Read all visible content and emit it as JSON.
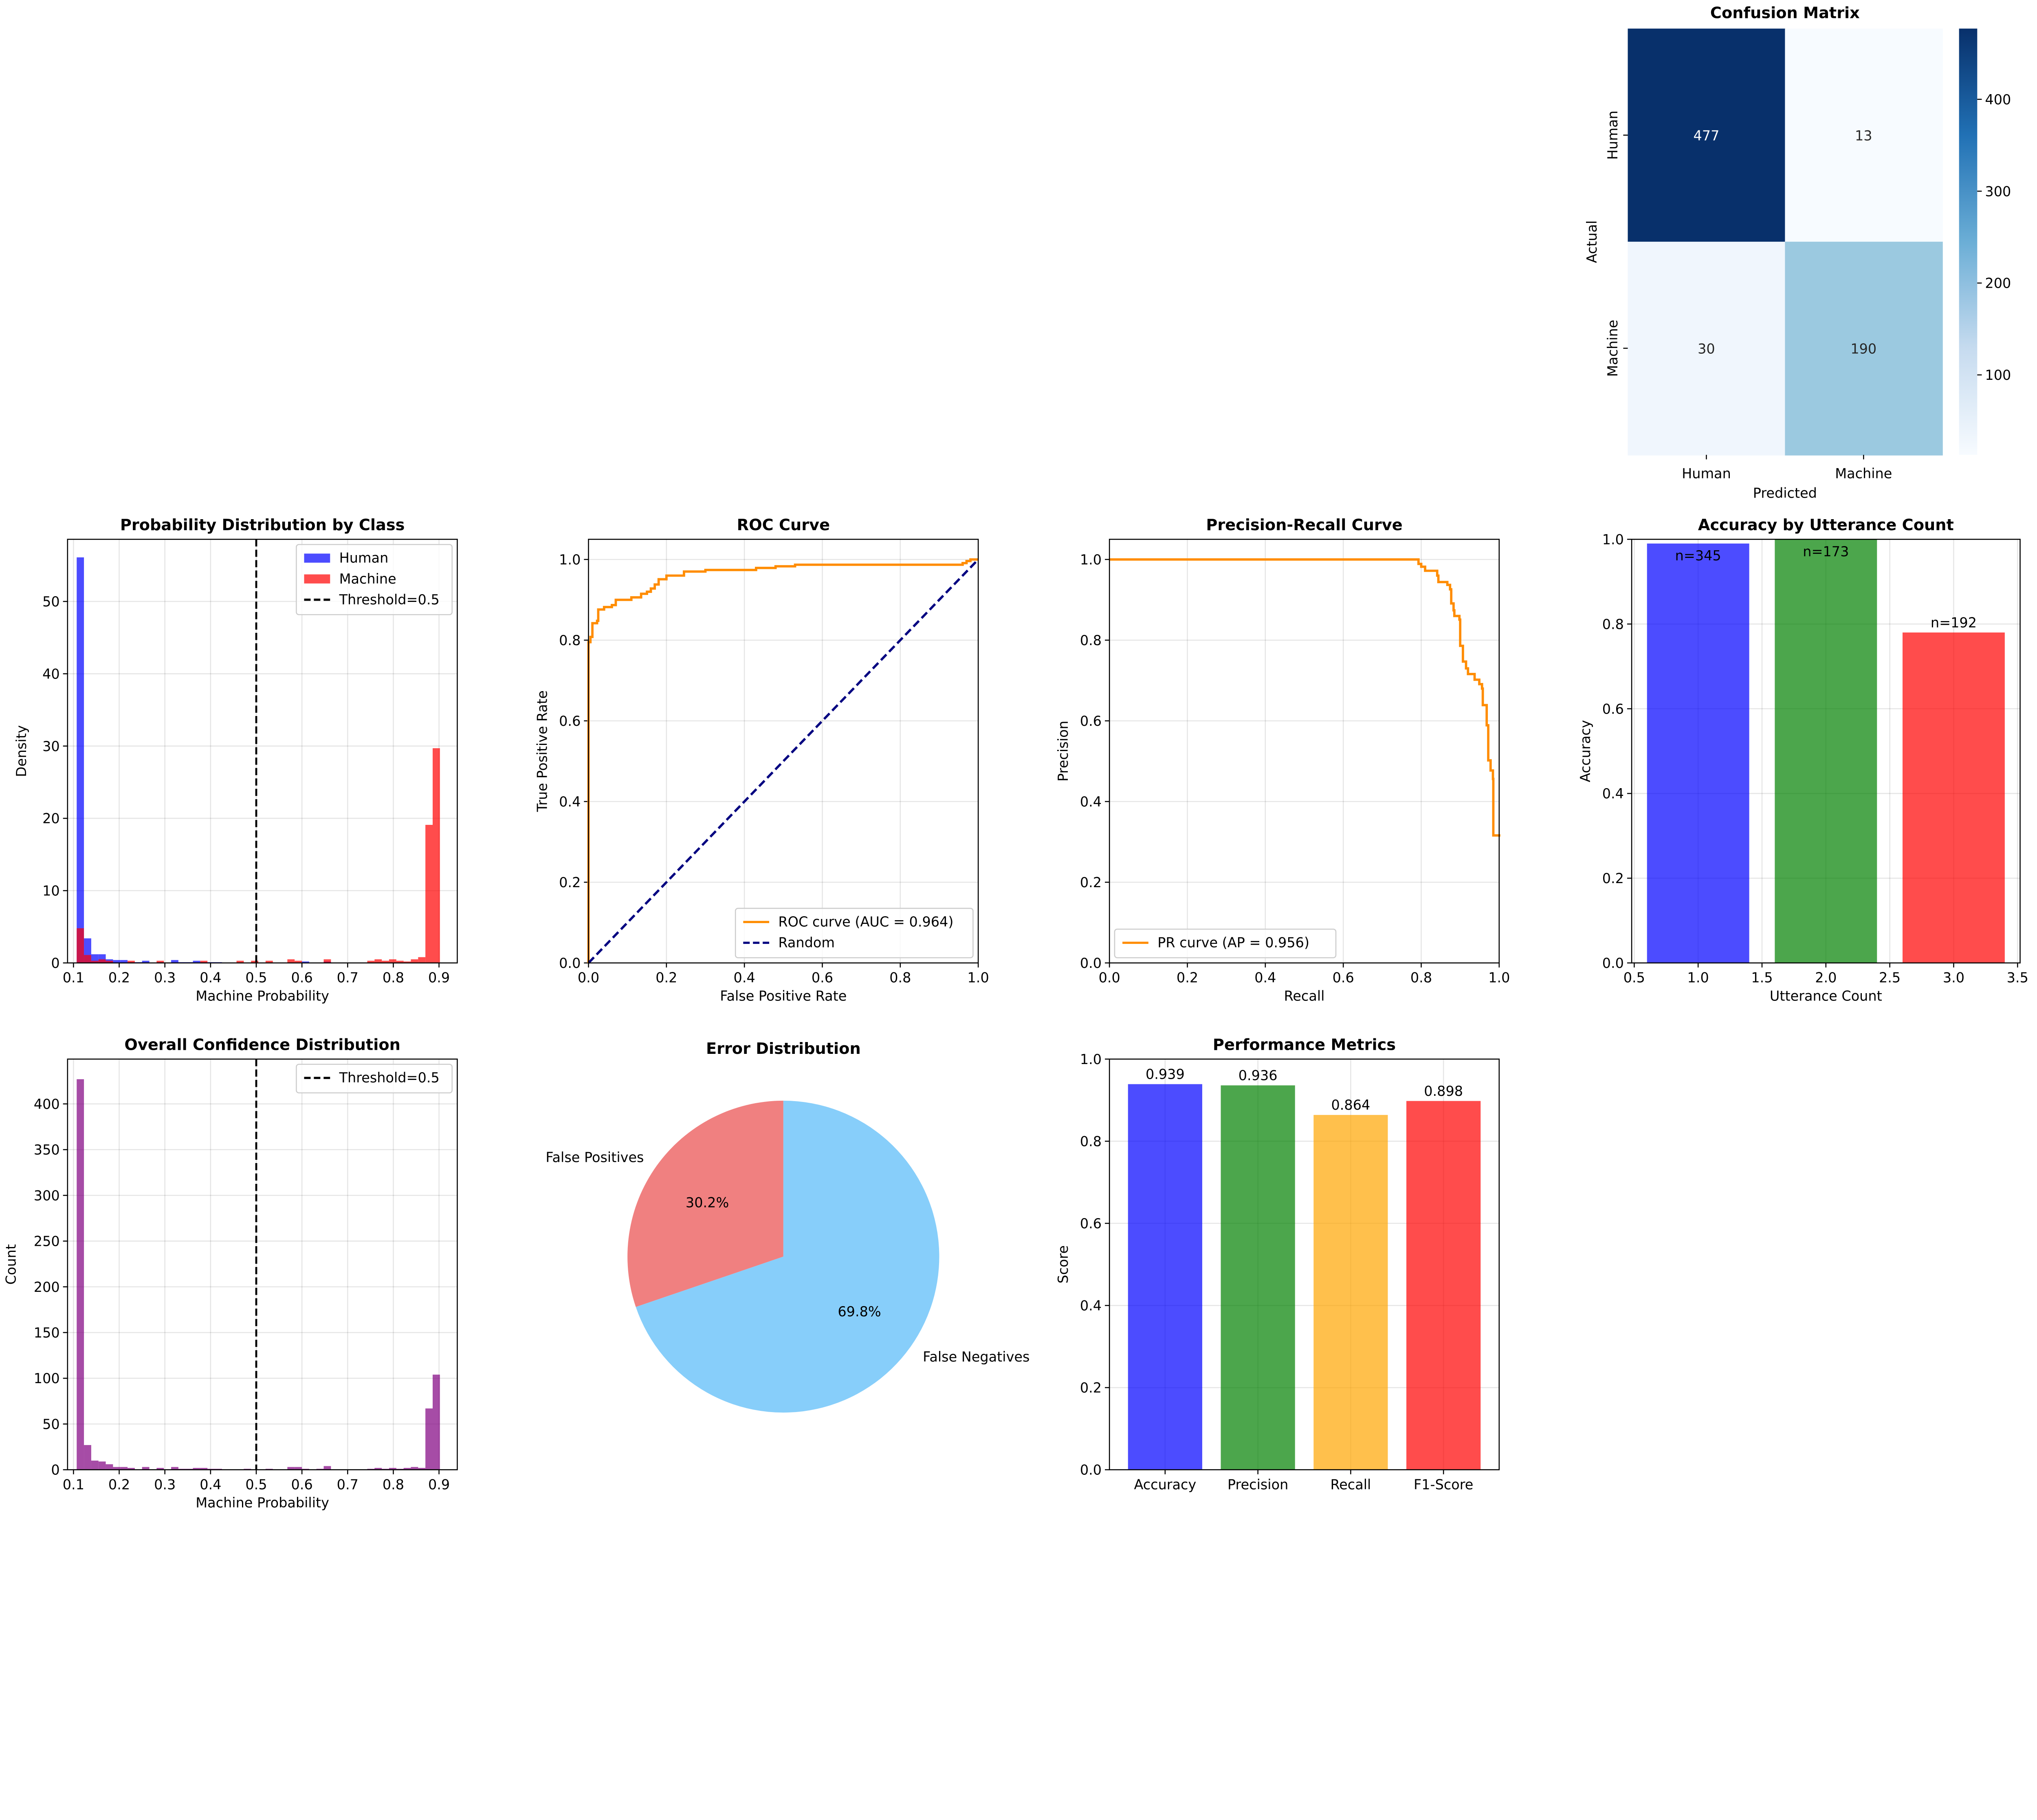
{
  "chart_data": [
    {
      "id": "confusion",
      "type": "heatmap",
      "title": "Confusion Matrix",
      "xlabel": "Predicted",
      "ylabel": "Actual",
      "x_categories": [
        "Human",
        "Machine"
      ],
      "y_categories": [
        "Human",
        "Machine"
      ],
      "values": [
        [
          477,
          13
        ],
        [
          30,
          190
        ]
      ],
      "colormap": "Blues",
      "colorbar": {
        "range": [
          13,
          477
        ],
        "ticks": [
          "100",
          "200",
          "300",
          "400"
        ]
      }
    },
    {
      "id": "prob_dist",
      "type": "histogram",
      "title": "Probability Distribution by Class",
      "xlabel": "Machine Probability",
      "ylabel": "Density",
      "xlim": [
        0.087,
        0.94
      ],
      "ylim": [
        0,
        58.6
      ],
      "xticks": [
        "0.1",
        "0.2",
        "0.3",
        "0.4",
        "0.5",
        "0.6",
        "0.7",
        "0.8",
        "0.9"
      ],
      "yticks": [
        "0",
        "10",
        "20",
        "30",
        "40",
        "50"
      ],
      "bin_range": [
        0.107,
        0.902
      ],
      "grid": true,
      "legend": "upper right",
      "series": [
        {
          "name": "Human",
          "color": "#0000FF",
          "alpha": 0.7,
          "values": [
            56.1,
            3.4,
            1.2,
            1.2,
            0.5,
            0.4,
            0.4,
            0.1,
            0.1,
            0.3,
            0,
            0.1,
            0,
            0.4,
            0.1,
            0.1,
            0.3,
            0.1,
            0.1,
            0.1,
            0,
            0,
            0,
            0,
            0,
            0,
            0,
            0,
            0,
            0,
            0,
            0.2,
            0,
            0,
            0.2,
            0,
            0,
            0,
            0,
            0,
            0,
            0,
            0,
            0,
            0,
            0,
            0,
            0,
            0,
            0
          ]
        },
        {
          "name": "Machine",
          "color": "#FF0000",
          "alpha": 0.7,
          "values": [
            4.8,
            1.1,
            0.3,
            0.5,
            0.3,
            0,
            0,
            0.3,
            0,
            0,
            0,
            0.3,
            0,
            0,
            0,
            0,
            0,
            0.3,
            0,
            0,
            0,
            0,
            0.3,
            0,
            0.3,
            0,
            0.3,
            0,
            0,
            0.5,
            0.3,
            0,
            0,
            0,
            0.5,
            0,
            0,
            0,
            0,
            0,
            0.3,
            0.5,
            0.3,
            0.5,
            0.3,
            0.2,
            0.5,
            0.8,
            19.1,
            29.7
          ]
        }
      ],
      "threshold": {
        "x": 0.5,
        "label": "Threshold=0.5",
        "color": "#000000"
      }
    },
    {
      "id": "roc",
      "type": "line",
      "title": "ROC Curve",
      "xlabel": "False Positive Rate",
      "ylabel": "True Positive Rate",
      "xlim": [
        0,
        1
      ],
      "ylim": [
        0,
        1.05
      ],
      "xticks": [
        "0.0",
        "0.2",
        "0.4",
        "0.6",
        "0.8",
        "1.0"
      ],
      "yticks": [
        "0.0",
        "0.2",
        "0.4",
        "0.6",
        "0.8",
        "1.0"
      ],
      "grid": true,
      "legend": "lower right",
      "series": [
        {
          "name": "ROC curve (AUC = 0.964)",
          "color": "#FF8C00",
          "x": [
            0,
            0,
            0.005,
            0.01,
            0.022,
            0.025,
            0.04,
            0.06,
            0.07,
            0.11,
            0.135,
            0.15,
            0.16,
            0.17,
            0.18,
            0.2,
            0.245,
            0.3,
            0.43,
            0.48,
            0.53,
            0.96,
            0.97,
            0.98,
            1.0
          ],
          "y": [
            0,
            0.795,
            0.808,
            0.842,
            0.848,
            0.876,
            0.882,
            0.887,
            0.9,
            0.906,
            0.915,
            0.92,
            0.928,
            0.938,
            0.951,
            0.96,
            0.97,
            0.974,
            0.979,
            0.983,
            0.987,
            0.991,
            0.996,
            1.0,
            1.0
          ]
        },
        {
          "name": "Random",
          "color": "#000080",
          "dashed": true,
          "x": [
            0,
            1
          ],
          "y": [
            0,
            1
          ]
        }
      ]
    },
    {
      "id": "pr",
      "type": "line",
      "title": "Precision-Recall Curve",
      "xlabel": "Recall",
      "ylabel": "Precision",
      "xlim": [
        0,
        1
      ],
      "ylim": [
        0,
        1.05
      ],
      "xticks": [
        "0.0",
        "0.2",
        "0.4",
        "0.6",
        "0.8",
        "1.0"
      ],
      "yticks": [
        "0.0",
        "0.2",
        "0.4",
        "0.6",
        "0.8",
        "1.0"
      ],
      "grid": true,
      "legend": "lower left",
      "series": [
        {
          "name": "PR curve (AP = 0.956)",
          "color": "#FF8C00",
          "x": [
            0,
            0.793,
            0.8,
            0.81,
            0.841,
            0.844,
            0.867,
            0.874,
            0.877,
            0.883,
            0.885,
            0.898,
            0.9,
            0.907,
            0.915,
            0.92,
            0.937,
            0.949,
            0.956,
            0.958,
            0.968,
            0.972,
            0.978,
            0.984,
            0.985,
            1.0
          ],
          "y": [
            1,
            0.989,
            0.982,
            0.972,
            0.96,
            0.944,
            0.937,
            0.926,
            0.891,
            0.874,
            0.86,
            0.851,
            0.786,
            0.747,
            0.73,
            0.716,
            0.702,
            0.691,
            0.68,
            0.639,
            0.589,
            0.502,
            0.477,
            0.456,
            0.316,
            0.313
          ]
        }
      ]
    },
    {
      "id": "acc_utt",
      "type": "bar",
      "title": "Accuracy by Utterance Count",
      "xlabel": "Utterance Count",
      "ylabel": "Accuracy",
      "xlim": [
        0.48,
        3.52
      ],
      "ylim": [
        0,
        1
      ],
      "xticks": [
        "0.5",
        "1.0",
        "1.5",
        "2.0",
        "2.5",
        "3.0",
        "3.5"
      ],
      "yticks": [
        "0.0",
        "0.2",
        "0.4",
        "0.6",
        "0.8",
        "1.0"
      ],
      "grid": true,
      "x": [
        1,
        2,
        3
      ],
      "values": [
        0.99,
        1.0,
        0.78
      ],
      "bar_labels": [
        "n=345",
        "n=173",
        "n=192"
      ],
      "colors": [
        "#0000FF",
        "#008000",
        "#FF0000"
      ],
      "alpha": 0.7
    },
    {
      "id": "confidence",
      "type": "histogram",
      "title": "Overall Confidence Distribution",
      "xlabel": "Machine Probability",
      "ylabel": "Count",
      "xlim": [
        0.087,
        0.94
      ],
      "ylim": [
        0,
        449
      ],
      "xticks": [
        "0.1",
        "0.2",
        "0.3",
        "0.4",
        "0.5",
        "0.6",
        "0.7",
        "0.8",
        "0.9"
      ],
      "yticks": [
        "0",
        "50",
        "100",
        "150",
        "200",
        "250",
        "300",
        "350",
        "400"
      ],
      "bin_range": [
        0.107,
        0.902
      ],
      "grid": true,
      "legend": "upper right",
      "series": [
        {
          "color": "#800080",
          "alpha": 0.7,
          "values": [
            427,
            27,
            10,
            9,
            6,
            3,
            3,
            2,
            0,
            3,
            0,
            2,
            0,
            3,
            1,
            1,
            2,
            2,
            1,
            1,
            0,
            0,
            0,
            1,
            0,
            0,
            1,
            0,
            0,
            3,
            3,
            1,
            0,
            1,
            4,
            0,
            0,
            0,
            0,
            0,
            1,
            2,
            1,
            2,
            1,
            2,
            3,
            2,
            67,
            104
          ]
        }
      ],
      "threshold": {
        "x": 0.5,
        "label": "Threshold=0.5",
        "color": "#000000"
      }
    },
    {
      "id": "errors",
      "type": "pie",
      "title": "Error Distribution",
      "labels": [
        "False Positives",
        "False Negatives"
      ],
      "values": [
        13,
        30
      ],
      "percent_labels": [
        "30.2%",
        "69.8%"
      ],
      "colors": [
        "#F08080",
        "#87CEFA"
      ],
      "start_angle": 90
    },
    {
      "id": "metrics",
      "type": "bar",
      "title": "Performance Metrics",
      "xlabel": "",
      "ylabel": "Score",
      "xlim": [
        -0.6,
        3.6
      ],
      "ylim": [
        0,
        1
      ],
      "yticks": [
        "0.0",
        "0.2",
        "0.4",
        "0.6",
        "0.8",
        "1.0"
      ],
      "grid": true,
      "categories": [
        "Accuracy",
        "Precision",
        "Recall",
        "F1-Score"
      ],
      "values": [
        0.939,
        0.936,
        0.864,
        0.898
      ],
      "bar_labels": [
        "0.939",
        "0.936",
        "0.864",
        "0.898"
      ],
      "colors": [
        "#0000FF",
        "#008000",
        "#FFA500",
        "#FF0000"
      ],
      "alpha": 0.7
    }
  ]
}
